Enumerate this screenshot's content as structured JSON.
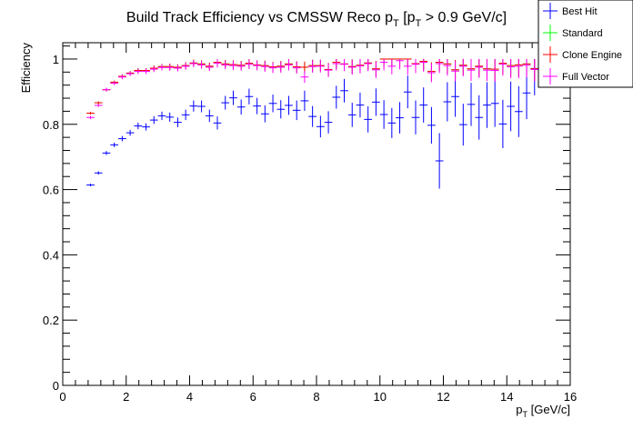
{
  "chart_data": {
    "type": "scatter",
    "title_main": "Build Track Efficiency vs CMSSW Reco p",
    "title_sub1": "T",
    "title_mid": " [p",
    "title_sub2": "T",
    "title_tail": " > 0.9 GeV/c]",
    "xlabel_main": "p",
    "xlabel_sub": "T",
    "xlabel_tail": " [GeV/c]",
    "ylabel": "Efficiency",
    "xlim": [
      0,
      16
    ],
    "ylim": [
      0,
      1.05
    ],
    "xticks": [
      0,
      2,
      4,
      6,
      8,
      10,
      12,
      14,
      16
    ],
    "yticks": [
      0,
      0.2,
      0.4,
      0.6,
      0.8,
      1
    ],
    "xtick_labels": [
      "0",
      "2",
      "4",
      "6",
      "8",
      "10",
      "12",
      "14",
      "16"
    ],
    "ytick_labels": [
      "0",
      "0.2",
      "0.4",
      "0.6",
      "0.8",
      "1"
    ],
    "legend_position": "top-right",
    "x_bin_halfwidth": 0.125,
    "x": [
      0.875,
      1.125,
      1.375,
      1.625,
      1.875,
      2.125,
      2.375,
      2.625,
      2.875,
      3.125,
      3.375,
      3.625,
      3.875,
      4.125,
      4.375,
      4.625,
      4.875,
      5.125,
      5.375,
      5.625,
      5.875,
      6.125,
      6.375,
      6.625,
      6.875,
      7.125,
      7.375,
      7.625,
      7.875,
      8.125,
      8.375,
      8.625,
      8.875,
      9.125,
      9.375,
      9.625,
      9.875,
      10.125,
      10.375,
      10.625,
      10.875,
      11.125,
      11.375,
      11.625,
      11.875,
      12.125,
      12.375,
      12.625,
      12.875,
      13.125,
      13.375,
      13.625,
      13.875,
      14.125,
      14.375,
      14.625,
      14.875
    ],
    "series": [
      {
        "name": "Best Hit",
        "color": "#0000ff",
        "values": [
          0.614,
          0.651,
          0.712,
          0.737,
          0.756,
          0.774,
          0.795,
          0.792,
          0.813,
          0.826,
          0.822,
          0.806,
          0.829,
          0.856,
          0.855,
          0.826,
          0.804,
          0.866,
          0.881,
          0.853,
          0.885,
          0.856,
          0.832,
          0.864,
          0.846,
          0.858,
          0.843,
          0.872,
          0.824,
          0.793,
          0.806,
          0.883,
          0.903,
          0.829,
          0.859,
          0.815,
          0.868,
          0.83,
          0.804,
          0.82,
          0.899,
          0.821,
          0.859,
          0.797,
          0.688,
          0.869,
          0.885,
          0.799,
          0.861,
          0.821,
          0.859,
          0.864,
          0.801,
          0.855,
          0.839,
          0.896,
          0.971
        ],
        "errors": [
          0.004,
          0.005,
          0.006,
          0.007,
          0.008,
          0.009,
          0.01,
          0.011,
          0.012,
          0.013,
          0.014,
          0.015,
          0.016,
          0.017,
          0.018,
          0.019,
          0.02,
          0.021,
          0.022,
          0.023,
          0.024,
          0.025,
          0.026,
          0.027,
          0.028,
          0.029,
          0.03,
          0.031,
          0.032,
          0.033,
          0.034,
          0.035,
          0.036,
          0.037,
          0.038,
          0.04,
          0.042,
          0.044,
          0.046,
          0.048,
          0.05,
          0.052,
          0.054,
          0.056,
          0.085,
          0.06,
          0.062,
          0.064,
          0.066,
          0.068,
          0.07,
          0.072,
          0.074,
          0.076,
          0.078,
          0.08,
          0.082
        ]
      },
      {
        "name": "Standard",
        "color": "#00ff00",
        "values": [
          0.834,
          0.866,
          0.906,
          0.929,
          0.947,
          0.957,
          0.965,
          0.965,
          0.972,
          0.977,
          0.977,
          0.975,
          0.98,
          0.988,
          0.985,
          0.978,
          0.99,
          0.985,
          0.983,
          0.981,
          0.987,
          0.982,
          0.98,
          0.976,
          0.978,
          0.985,
          0.976,
          0.975,
          0.98,
          0.98,
          0.968,
          0.99,
          0.985,
          0.977,
          0.981,
          0.988,
          0.97,
          1.0,
          1.0,
          1.0,
          1.0,
          0.986,
          0.993,
          0.962,
          0.99,
          0.985,
          0.967,
          0.981,
          0.97,
          0.978,
          0.97,
          0.969,
          0.987,
          0.98,
          0.982,
          0.985,
          0.97
        ],
        "errors": [
          0.004,
          0.004,
          0.005,
          0.005,
          0.006,
          0.006,
          0.007,
          0.007,
          0.008,
          0.008,
          0.009,
          0.009,
          0.01,
          0.01,
          0.011,
          0.011,
          0.012,
          0.012,
          0.013,
          0.013,
          0.014,
          0.014,
          0.015,
          0.015,
          0.016,
          0.016,
          0.017,
          0.017,
          0.018,
          0.018,
          0.02,
          0.02,
          0.02,
          0.022,
          0.022,
          0.022,
          0.024,
          0.024,
          0.024,
          0.026,
          0.026,
          0.026,
          0.028,
          0.028,
          0.028,
          0.03,
          0.03,
          0.03,
          0.032,
          0.032,
          0.032,
          0.034,
          0.034,
          0.034,
          0.036,
          0.036,
          0.036
        ]
      },
      {
        "name": "Clone Engine",
        "color": "#ff0000",
        "values": [
          0.834,
          0.866,
          0.906,
          0.929,
          0.947,
          0.957,
          0.965,
          0.965,
          0.972,
          0.977,
          0.977,
          0.975,
          0.98,
          0.988,
          0.985,
          0.978,
          0.99,
          0.985,
          0.983,
          0.981,
          0.987,
          0.982,
          0.98,
          0.976,
          0.978,
          0.985,
          0.976,
          0.975,
          0.98,
          0.98,
          0.968,
          0.99,
          0.985,
          0.977,
          0.981,
          0.988,
          0.97,
          1.0,
          1.0,
          1.0,
          1.0,
          0.986,
          0.993,
          0.962,
          0.99,
          0.985,
          0.967,
          0.981,
          0.97,
          0.978,
          0.97,
          0.969,
          0.987,
          0.98,
          0.982,
          0.985,
          0.97
        ],
        "errors": [
          0.004,
          0.004,
          0.005,
          0.005,
          0.006,
          0.006,
          0.007,
          0.007,
          0.008,
          0.008,
          0.009,
          0.009,
          0.01,
          0.01,
          0.011,
          0.011,
          0.012,
          0.012,
          0.013,
          0.013,
          0.014,
          0.014,
          0.015,
          0.015,
          0.016,
          0.016,
          0.017,
          0.017,
          0.018,
          0.018,
          0.02,
          0.02,
          0.02,
          0.022,
          0.022,
          0.022,
          0.024,
          0.024,
          0.024,
          0.026,
          0.026,
          0.026,
          0.028,
          0.028,
          0.028,
          0.03,
          0.03,
          0.03,
          0.032,
          0.032,
          0.032,
          0.034,
          0.034,
          0.034,
          0.036,
          0.036,
          0.036
        ]
      },
      {
        "name": "Full Vector",
        "color": "#ff00ff",
        "values": [
          0.821,
          0.858,
          0.906,
          0.926,
          0.945,
          0.955,
          0.962,
          0.962,
          0.969,
          0.974,
          0.974,
          0.972,
          0.978,
          0.986,
          0.982,
          0.975,
          0.987,
          0.982,
          0.98,
          0.978,
          0.984,
          0.98,
          0.977,
          0.973,
          0.975,
          0.982,
          0.973,
          0.945,
          0.977,
          0.978,
          0.966,
          0.986,
          0.984,
          0.975,
          0.979,
          0.986,
          0.967,
          0.99,
          0.978,
          0.995,
          0.978,
          0.984,
          0.99,
          0.958,
          0.986,
          0.98,
          0.963,
          0.978,
          0.966,
          0.975,
          0.966,
          0.965,
          0.984,
          0.976,
          0.978,
          0.981,
          0.968
        ],
        "errors": [
          0.005,
          0.005,
          0.006,
          0.006,
          0.007,
          0.007,
          0.008,
          0.008,
          0.009,
          0.009,
          0.01,
          0.01,
          0.011,
          0.011,
          0.012,
          0.012,
          0.013,
          0.013,
          0.014,
          0.014,
          0.015,
          0.015,
          0.016,
          0.016,
          0.017,
          0.017,
          0.018,
          0.018,
          0.019,
          0.019,
          0.021,
          0.021,
          0.021,
          0.023,
          0.023,
          0.023,
          0.025,
          0.025,
          0.025,
          0.027,
          0.027,
          0.027,
          0.029,
          0.029,
          0.029,
          0.031,
          0.031,
          0.031,
          0.033,
          0.033,
          0.033,
          0.035,
          0.035,
          0.035,
          0.037,
          0.037,
          0.037
        ]
      }
    ]
  }
}
